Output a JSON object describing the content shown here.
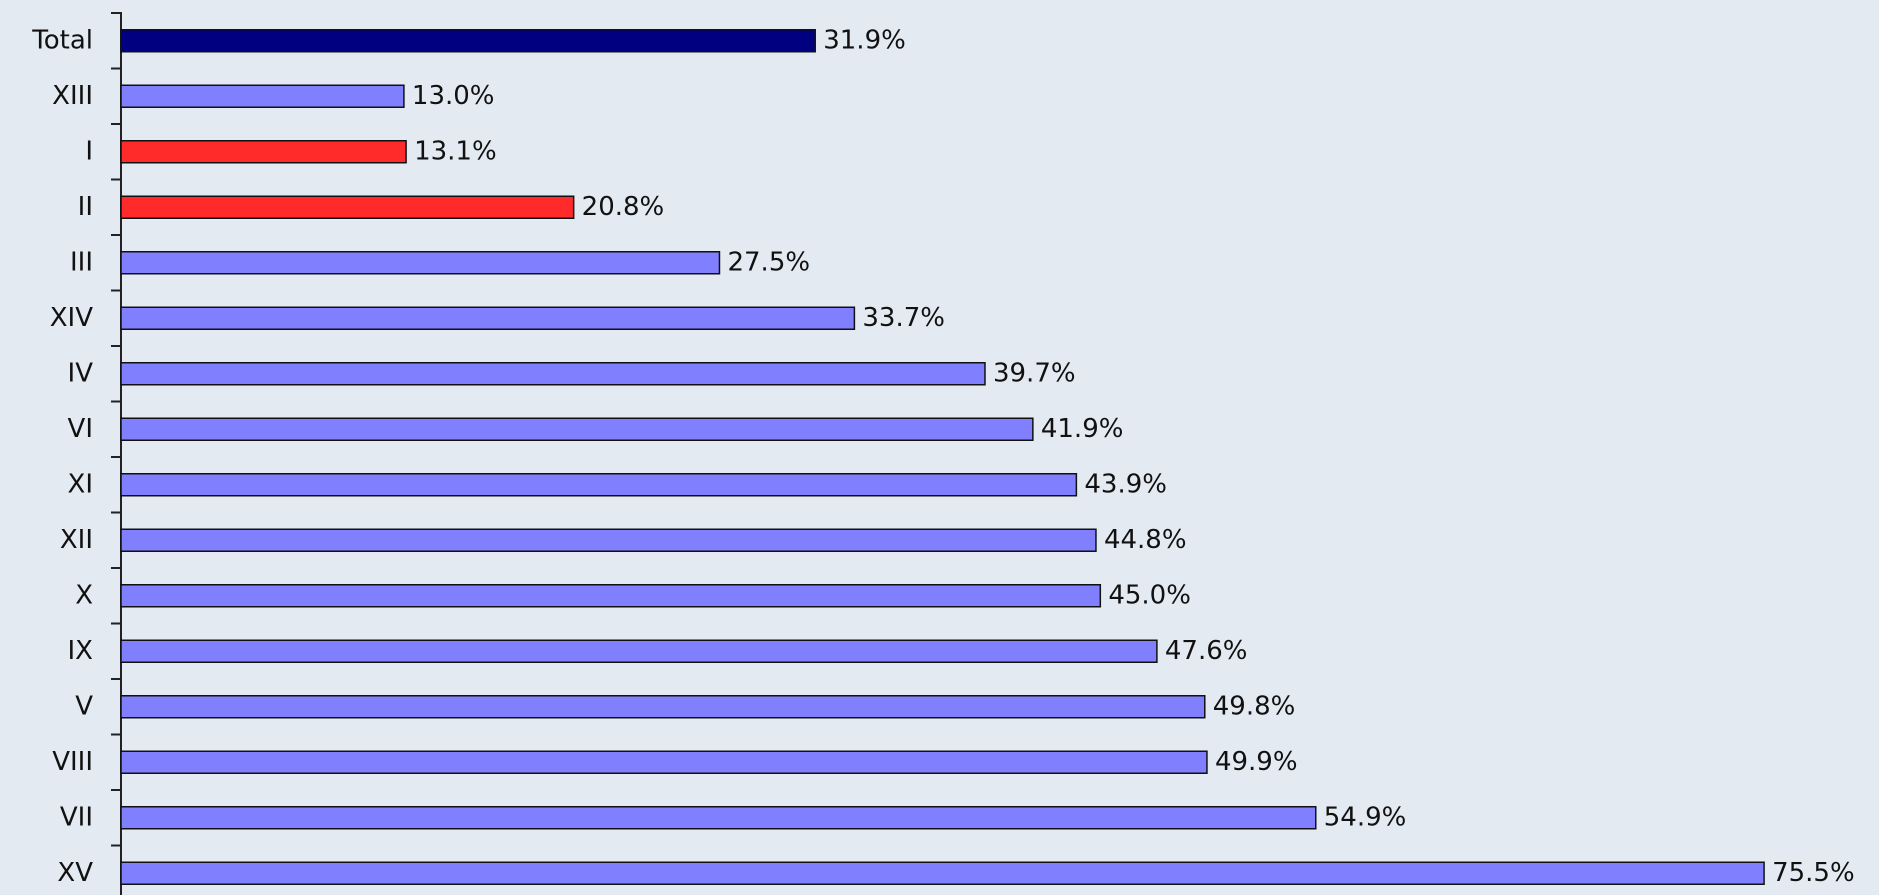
{
  "chart_data": {
    "type": "barh",
    "categories": [
      "Total",
      "XIII",
      "I",
      "II",
      "III",
      "XIV",
      "IV",
      "VI",
      "XI",
      "XII",
      "X",
      "IX",
      "V",
      "VIII",
      "VII",
      "XV"
    ],
    "values": [
      31.9,
      13.0,
      13.1,
      20.8,
      27.5,
      33.7,
      39.7,
      41.9,
      43.9,
      44.8,
      45.0,
      47.6,
      49.8,
      49.9,
      54.9,
      75.5
    ],
    "value_labels": [
      "31.9%",
      "13.0%",
      "13.1%",
      "20.8%",
      "27.5%",
      "33.7%",
      "39.7%",
      "41.9%",
      "43.9%",
      "44.8%",
      "45.0%",
      "47.6%",
      "49.8%",
      "49.9%",
      "54.9%",
      "75.5%"
    ],
    "colors": [
      "#000080",
      "#8080ff",
      "#ff2a2a",
      "#ff2a2a",
      "#8080ff",
      "#8080ff",
      "#8080ff",
      "#8080ff",
      "#8080ff",
      "#8080ff",
      "#8080ff",
      "#8080ff",
      "#8080ff",
      "#8080ff",
      "#8080ff",
      "#8080ff"
    ],
    "xlim": [
      0,
      80
    ]
  }
}
